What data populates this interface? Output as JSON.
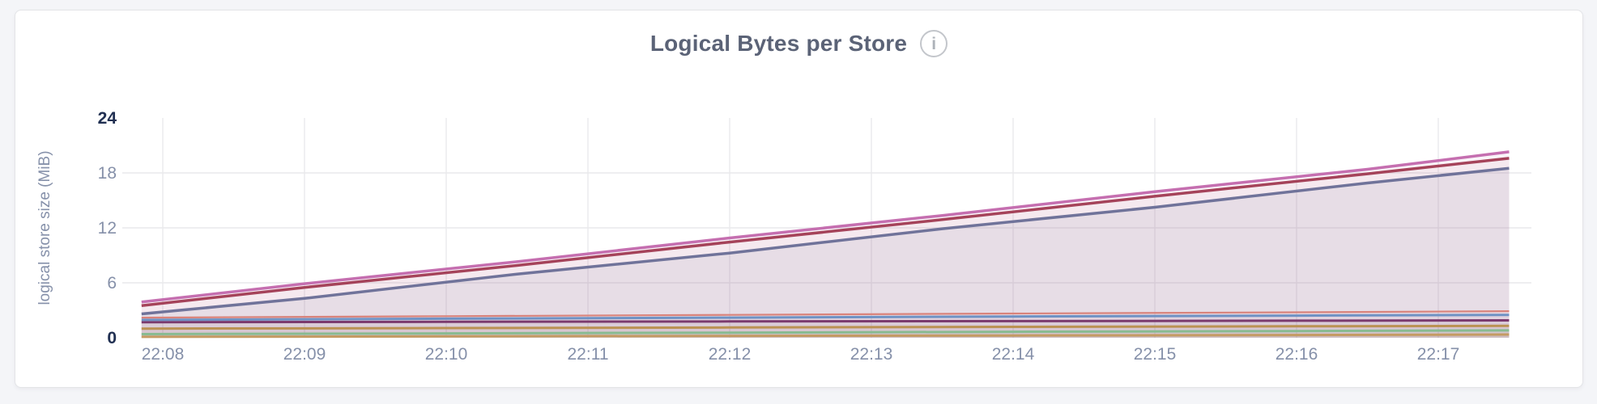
{
  "header": {
    "info_icon_glyph": "i"
  },
  "chart_data": {
    "type": "area",
    "title": "Logical Bytes per Store",
    "xlabel": "",
    "ylabel": "logical store size (MiB)",
    "ylim": [
      0,
      24
    ],
    "grid": true,
    "legend": "none",
    "x_unit": "minutes after 22:08",
    "x_range": [
      -0.15,
      9.5
    ],
    "x_tick_labels": [
      "22:08",
      "22:09",
      "22:10",
      "22:11",
      "22:12",
      "22:13",
      "22:14",
      "22:15",
      "22:16",
      "22:17"
    ],
    "y_ticks": [
      {
        "label": "0",
        "value": 0,
        "emphasis": true
      },
      {
        "label": "6",
        "value": 6,
        "emphasis": false
      },
      {
        "label": "12",
        "value": 12,
        "emphasis": false
      },
      {
        "label": "18",
        "value": 18,
        "emphasis": false
      },
      {
        "label": "24",
        "value": 24,
        "emphasis": true
      }
    ],
    "series": [
      {
        "id": "series-1",
        "color": "#c49b63",
        "stroke_width": 3,
        "fill_opacity": 0.1,
        "points": [
          [
            -0.15,
            0.1
          ],
          [
            2,
            0.15
          ],
          [
            4,
            0.2
          ],
          [
            6,
            0.25
          ],
          [
            8,
            0.3
          ],
          [
            9.5,
            0.35
          ]
        ]
      },
      {
        "id": "series-2",
        "color": "#88bb91",
        "stroke_width": 3,
        "fill_opacity": 0.08,
        "points": [
          [
            -0.15,
            0.4
          ],
          [
            2,
            0.48
          ],
          [
            4,
            0.56
          ],
          [
            6,
            0.65
          ],
          [
            8,
            0.73
          ],
          [
            9.5,
            0.8
          ]
        ]
      },
      {
        "id": "series-3",
        "color": "#bb9253",
        "stroke_width": 3,
        "fill_opacity": 0.07,
        "points": [
          [
            -0.15,
            1.0
          ],
          [
            2,
            1.06
          ],
          [
            4,
            1.12
          ],
          [
            6,
            1.19
          ],
          [
            8,
            1.25
          ],
          [
            9.5,
            1.3
          ]
        ]
      },
      {
        "id": "series-4",
        "color": "#7b3a6e",
        "stroke_width": 3,
        "fill_opacity": 0.05,
        "points": [
          [
            -0.15,
            1.7
          ],
          [
            2,
            1.74
          ],
          [
            4,
            1.78
          ],
          [
            6,
            1.82
          ],
          [
            8,
            1.86
          ],
          [
            9.5,
            1.9
          ]
        ]
      },
      {
        "id": "series-5",
        "color": "#6f92c4",
        "stroke_width": 3,
        "fill_opacity": 0.05,
        "points": [
          [
            -0.15,
            1.95
          ],
          [
            2,
            2.08
          ],
          [
            4,
            2.2
          ],
          [
            6,
            2.32
          ],
          [
            8,
            2.42
          ],
          [
            9.5,
            2.5
          ]
        ]
      },
      {
        "id": "series-6",
        "color": "#d9837b",
        "stroke_width": 2.2,
        "fill_opacity": 0.05,
        "points": [
          [
            -0.15,
            2.2
          ],
          [
            2,
            2.36
          ],
          [
            4,
            2.5
          ],
          [
            6,
            2.65
          ],
          [
            8,
            2.78
          ],
          [
            9.5,
            2.9
          ]
        ]
      },
      {
        "id": "series-7",
        "color": "#70739a",
        "stroke_width": 3.5,
        "fill_opacity": 0.1,
        "points": [
          [
            -0.15,
            2.6
          ],
          [
            1,
            4.3
          ],
          [
            2.5,
            6.95
          ],
          [
            4,
            9.25
          ],
          [
            5.5,
            11.9
          ],
          [
            7,
            14.25
          ],
          [
            8.5,
            16.9
          ],
          [
            9.5,
            18.5
          ]
        ]
      },
      {
        "id": "series-8",
        "color": "#a5435a",
        "stroke_width": 3.5,
        "fill_opacity": 0.06,
        "points": [
          [
            -0.15,
            3.5
          ],
          [
            1,
            5.5
          ],
          [
            2.5,
            7.9
          ],
          [
            4,
            10.45
          ],
          [
            5.5,
            12.9
          ],
          [
            7,
            15.45
          ],
          [
            8.5,
            17.9
          ],
          [
            9.5,
            19.6
          ]
        ]
      },
      {
        "id": "series-9",
        "color": "#c56fb0",
        "stroke_width": 3.5,
        "fill_opacity": 0.08,
        "points": [
          [
            -0.15,
            3.9
          ],
          [
            1,
            5.9
          ],
          [
            2.5,
            8.3
          ],
          [
            4,
            10.9
          ],
          [
            5.5,
            13.35
          ],
          [
            7,
            15.95
          ],
          [
            8.5,
            18.4
          ],
          [
            9.5,
            20.3
          ]
        ]
      }
    ]
  }
}
